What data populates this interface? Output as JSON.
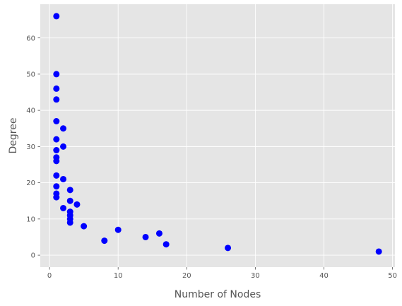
{
  "chart_data": {
    "type": "scatter",
    "title": "",
    "xlabel": "Number of Nodes",
    "ylabel": "Degree",
    "xlim": [
      -1.35,
      50.35
    ],
    "ylim": [
      -3.3,
      69.3
    ],
    "x_ticks": [
      0,
      10,
      20,
      30,
      40,
      50
    ],
    "y_ticks": [
      0,
      10,
      20,
      30,
      40,
      50,
      60
    ],
    "grid": true,
    "background_color": "#e5e5e5",
    "grid_color": "#ffffff",
    "marker_color": "#0000ff",
    "points": [
      {
        "x": 1,
        "y": 66
      },
      {
        "x": 1,
        "y": 50
      },
      {
        "x": 1,
        "y": 46
      },
      {
        "x": 1,
        "y": 43
      },
      {
        "x": 1,
        "y": 37
      },
      {
        "x": 1,
        "y": 32
      },
      {
        "x": 1,
        "y": 29
      },
      {
        "x": 1,
        "y": 27
      },
      {
        "x": 1,
        "y": 26
      },
      {
        "x": 1,
        "y": 22
      },
      {
        "x": 1,
        "y": 19
      },
      {
        "x": 1,
        "y": 17
      },
      {
        "x": 1,
        "y": 16
      },
      {
        "x": 2,
        "y": 35
      },
      {
        "x": 2,
        "y": 30
      },
      {
        "x": 2,
        "y": 21
      },
      {
        "x": 2,
        "y": 13
      },
      {
        "x": 3,
        "y": 18
      },
      {
        "x": 3,
        "y": 15
      },
      {
        "x": 3,
        "y": 12
      },
      {
        "x": 3,
        "y": 11
      },
      {
        "x": 3,
        "y": 10
      },
      {
        "x": 3,
        "y": 9
      },
      {
        "x": 4,
        "y": 14
      },
      {
        "x": 5,
        "y": 8
      },
      {
        "x": 8,
        "y": 4
      },
      {
        "x": 10,
        "y": 7
      },
      {
        "x": 14,
        "y": 5
      },
      {
        "x": 16,
        "y": 6
      },
      {
        "x": 17,
        "y": 3
      },
      {
        "x": 26,
        "y": 2
      },
      {
        "x": 48,
        "y": 1
      }
    ]
  }
}
